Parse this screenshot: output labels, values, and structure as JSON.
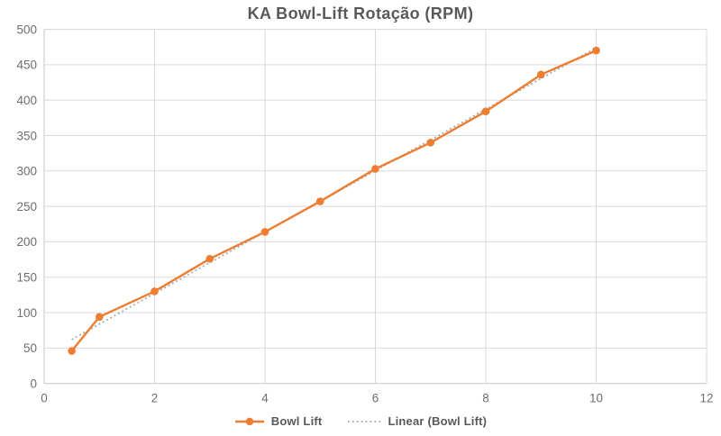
{
  "chart_data": {
    "type": "line",
    "title": "KA Bowl-Lift Rotação (RPM)",
    "x": [
      0.5,
      1,
      2,
      3,
      4,
      5,
      6,
      7,
      8,
      9,
      10
    ],
    "series": [
      {
        "name": "Bowl Lift",
        "values": [
          46,
          94,
          130,
          176,
          214,
          257,
          303,
          340,
          384,
          436,
          470
        ],
        "color": "#ED7D31",
        "marker": "circle",
        "line_style": "solid"
      }
    ],
    "trendline": {
      "name": "Linear (Bowl Lift)",
      "type": "linear",
      "source_series": "Bowl Lift",
      "color": "#A6A6A6",
      "line_style": "dotted"
    },
    "xlabel": "",
    "ylabel": "",
    "xlim": [
      0,
      12
    ],
    "ylim": [
      0,
      500
    ],
    "x_ticks": [
      0,
      2,
      4,
      6,
      8,
      10,
      12
    ],
    "y_ticks": [
      0,
      50,
      100,
      150,
      200,
      250,
      300,
      350,
      400,
      450,
      500
    ],
    "grid": true,
    "legend_position": "bottom"
  },
  "legend": {
    "items": [
      {
        "label": "Bowl Lift",
        "swatch": "line-with-marker"
      },
      {
        "label": "Linear (Bowl Lift)",
        "swatch": "dotted-line"
      }
    ]
  },
  "colors": {
    "series": "#ED7D31",
    "trendline": "#A6A6A6",
    "gridline": "#D9D9D9",
    "axis_line": "#C6C6C6",
    "tick_label": "#6E6E6E",
    "title": "#595959",
    "legend_label": "#595959",
    "background": "#FFFFFF"
  }
}
